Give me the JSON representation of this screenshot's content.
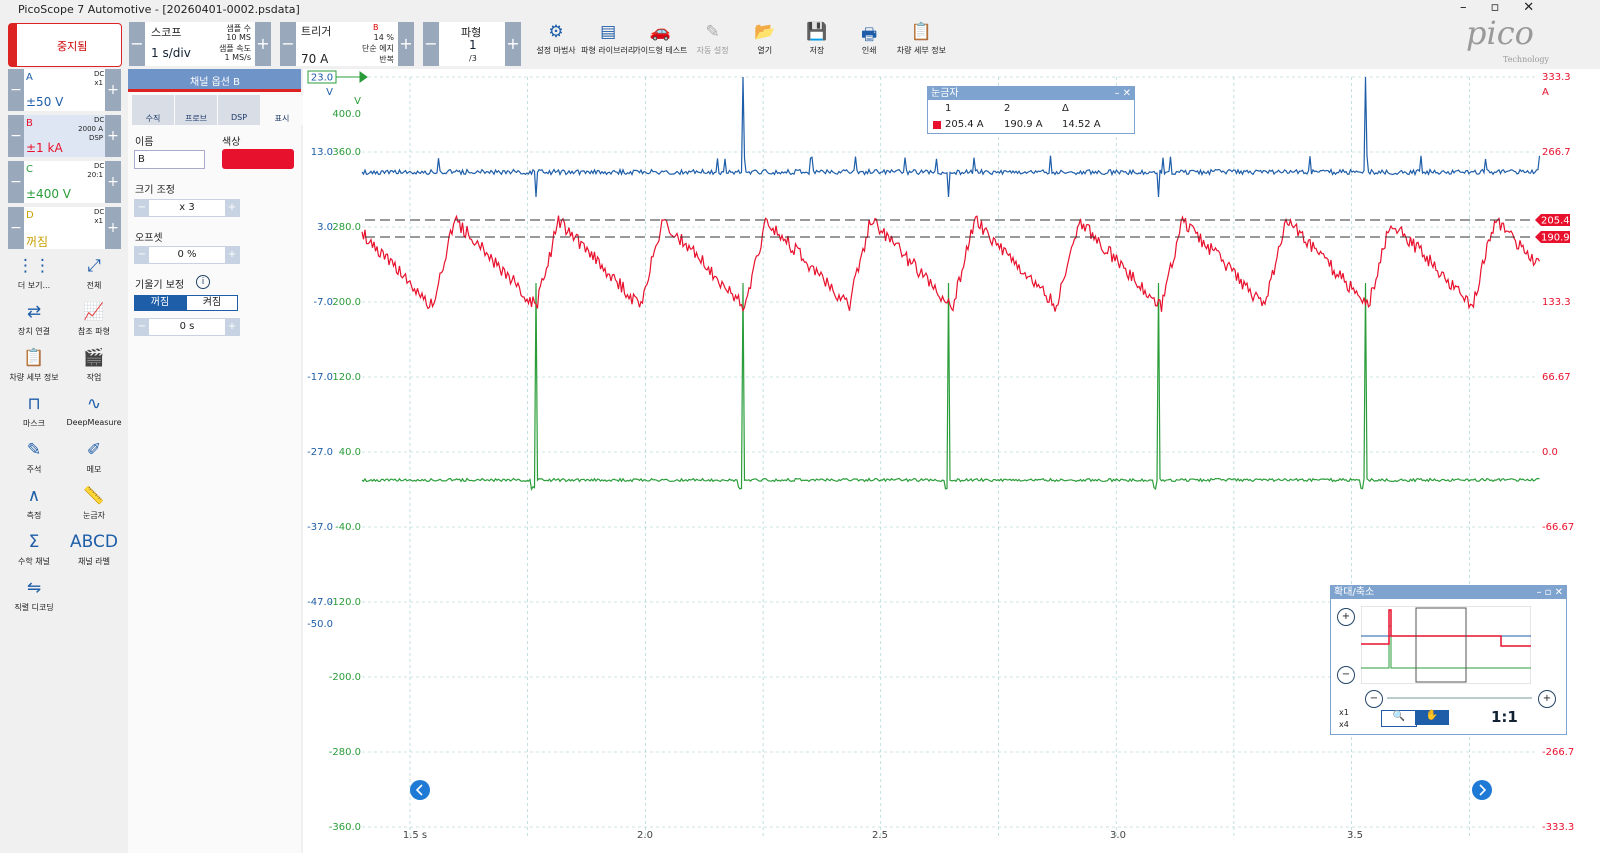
{
  "window": {
    "title": "PicoScope 7 Automotive - [20260401-0002.psdata]"
  },
  "toolbar": {
    "stop": "중지됨",
    "scope": {
      "label": "스코프",
      "timebase": "1 s/div",
      "samples_label": "샘플 수",
      "samples": "10 MS",
      "rate_label": "샘플 속도",
      "rate": "1 MS/s"
    },
    "trigger": {
      "label": "트리거",
      "channel": "B",
      "percent": "14 %",
      "level": "70 A",
      "mode": "단순 에지",
      "repeat": "반복"
    },
    "waveform": {
      "label": "파형",
      "current": "1",
      "total": "/3"
    },
    "buttons": [
      "설정 마법사",
      "파형 라이브러리",
      "가이드형 테스트",
      "자동 설정",
      "열기",
      "저장",
      "인쇄",
      "차량 세부 정보"
    ],
    "logo": "pico",
    "logo_sub": "Technology"
  },
  "channels": [
    {
      "name": "A",
      "coupling": "DC",
      "probe": "x1",
      "range": "±50 V"
    },
    {
      "name": "B",
      "coupling": "DC",
      "probe": "2000 A",
      "extra": "DSP",
      "range": "±1 kA"
    },
    {
      "name": "C",
      "coupling": "DC",
      "probe": "20:1",
      "range": "±400 V"
    },
    {
      "name": "D",
      "coupling": "DC",
      "probe": "x1",
      "range": "꺼짐"
    }
  ],
  "tools": [
    "더 보기...",
    "전체",
    "장치 연결",
    "참조 파형",
    "차량 세부 정보",
    "작업",
    "마스크",
    "DeepMeasure",
    "주석",
    "메모",
    "측정",
    "눈금자",
    "수학 채널",
    "채널 라벨",
    "직렬 디코딩"
  ],
  "channel_options": {
    "title": "채널 옵션 B",
    "tabs": [
      "수직",
      "프로브",
      "DSP",
      "표시"
    ],
    "name_label": "이름",
    "name_value": "B",
    "color_label": "색상",
    "scale_label": "크기 조정",
    "scale_value": "x 3",
    "offset_label": "오프셋",
    "offset_value": "0 %",
    "skew_label": "기울기 보정",
    "skew_off": "꺼짐",
    "skew_on": "켜짐",
    "skew_value": "0 s"
  },
  "plot": {
    "trigger_marker": "23.0",
    "axis_a": [
      "V",
      "13.0",
      "3.0",
      "-7.0",
      "-17.0",
      "-27.0",
      "-37.0",
      "-47.0",
      "-50.0"
    ],
    "axis_c": [
      "V",
      "400.0",
      "360.0",
      "280.0",
      "200.0",
      "120.0",
      "40.0",
      "-40.0",
      "-120.0",
      "-200.0",
      "-280.0",
      "-360.0"
    ],
    "axis_b": [
      "333.3",
      "A",
      "266.7",
      "133.3",
      "66.67",
      "0.0",
      "-66.67",
      "-266.7",
      "-333.3"
    ],
    "ruler_markers": [
      "205.4",
      "190.9"
    ],
    "x_labels": [
      "1.5 s",
      "2.0",
      "2.5",
      "3.0",
      "3.5"
    ]
  },
  "rulers": {
    "title": "눈금자",
    "headers": [
      "1",
      "2",
      "Δ"
    ],
    "values": [
      "205.4 A",
      "190.9 A",
      "14.52 A"
    ]
  },
  "zoom": {
    "title": "확대/축소",
    "ratio": "1:1",
    "x_factor": "x1",
    "y_factor": "x4"
  }
}
